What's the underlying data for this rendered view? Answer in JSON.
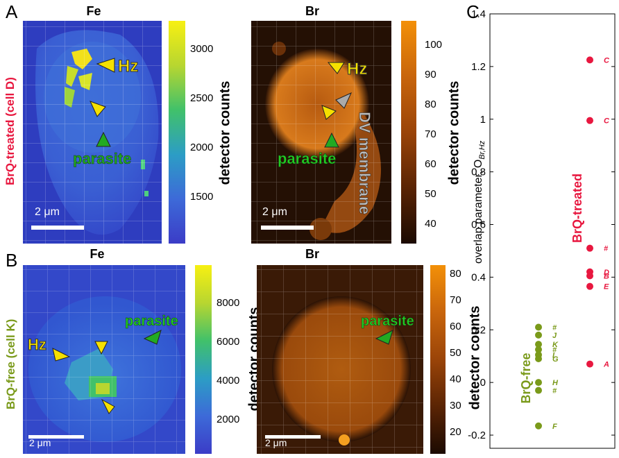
{
  "panels": {
    "A": {
      "letter": "A",
      "row_label": "BrQ-treated (cell D)",
      "fe": {
        "title": "Fe",
        "scale_bar": "2 μm",
        "hz_label": "Hz",
        "parasite_label": "parasite",
        "colorbar": {
          "label": "detector counts",
          "ticks": [
            "3000",
            "2500",
            "2000",
            "1500"
          ]
        }
      },
      "br": {
        "title": "Br",
        "scale_bar": "2 μm",
        "hz_label": "Hz",
        "dv_label": "DV membrane",
        "parasite_label": "parasite",
        "colorbar": {
          "label": "detector counts",
          "ticks": [
            "100",
            "90",
            "80",
            "70",
            "60",
            "50",
            "40"
          ]
        }
      }
    },
    "B": {
      "letter": "B",
      "row_label": "BrQ-free (cell K)",
      "fe": {
        "title": "Fe",
        "scale_bar": "2 μm",
        "hz_label": "Hz",
        "parasite_label": "parasite",
        "colorbar": {
          "label": "detector counts",
          "ticks": [
            "8000",
            "6000",
            "4000",
            "2000"
          ]
        }
      },
      "br": {
        "title": "Br",
        "scale_bar": "2 μm",
        "parasite_label": "parasite",
        "colorbar": {
          "label": "detector counts",
          "ticks": [
            "80",
            "70",
            "60",
            "50",
            "40",
            "30",
            "20"
          ]
        }
      }
    },
    "C": {
      "letter": "C",
      "chart_data": {
        "type": "scatter",
        "ylabel": "overlap parameter, O",
        "ylabel_sub": "Br,Hz",
        "ylim": [
          -0.25,
          1.4
        ],
        "yticks": [
          -0.2,
          0,
          0.2,
          0.4,
          0.6,
          0.8,
          1,
          1.2,
          1.4
        ],
        "ytick_labels": [
          "-0.2",
          "0",
          "0.2",
          "0.4",
          "0.6",
          "0.8",
          "1",
          "1.2",
          "1.4"
        ],
        "series": [
          {
            "name": "BrQ-free",
            "color": "#7a9a1a",
            "points": [
              {
                "y": 0.21,
                "label": "#"
              },
              {
                "y": 0.18,
                "label": "J"
              },
              {
                "y": 0.145,
                "label": "K"
              },
              {
                "y": 0.125,
                "label": "#"
              },
              {
                "y": 0.105,
                "label": "I"
              },
              {
                "y": 0.09,
                "label": "G"
              },
              {
                "y": 0.0,
                "label": "H"
              },
              {
                "y": -0.03,
                "label": "#"
              },
              {
                "y": -0.165,
                "label": "F"
              }
            ]
          },
          {
            "name": "BrQ-treated",
            "color": "#e8173f",
            "points": [
              {
                "y": 1.225,
                "label": "C"
              },
              {
                "y": 0.995,
                "label": "C"
              },
              {
                "y": 0.51,
                "label": "#"
              },
              {
                "y": 0.42,
                "label": "D"
              },
              {
                "y": 0.405,
                "label": "B"
              },
              {
                "y": 0.365,
                "label": "E"
              },
              {
                "y": 0.07,
                "label": "A"
              }
            ]
          }
        ]
      }
    }
  },
  "colors": {
    "treated": "#e8173f",
    "free": "#7a9a1a",
    "parasite": "#22aa22",
    "hz_arrow": "#f5e000",
    "fe_bg": "#3b55d6",
    "br_bg": "#2a1205"
  }
}
